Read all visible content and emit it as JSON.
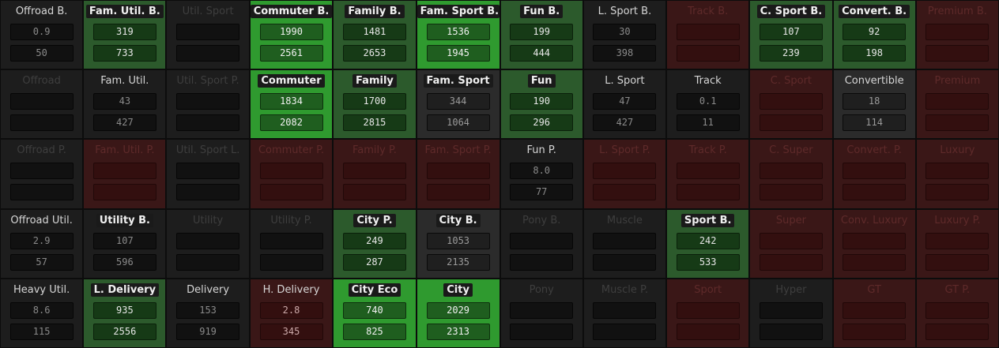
{
  "colors": {
    "dark": "#1d1d1d",
    "gray": "#2b2b2b",
    "green": "#2c5a2c",
    "bright_green": "#2f9a2f",
    "red": "#3a1717"
  },
  "rows": [
    [
      {
        "name": "Offroad B.",
        "label_style": "light",
        "tone": "dark",
        "v1": "0.9",
        "v2": "50"
      },
      {
        "name": "Fam. Util. B.",
        "label_style": "bold",
        "tone": "green",
        "v1": "319",
        "v2": "733"
      },
      {
        "name": "Util. Sport",
        "label_style": "faint",
        "tone": "dark",
        "v1": "",
        "v2": ""
      },
      {
        "name": "Commuter B.",
        "label_style": "bold",
        "tone": "bright",
        "v1": "1990",
        "v2": "2561"
      },
      {
        "name": "Family B.",
        "label_style": "bold",
        "tone": "green",
        "v1": "1481",
        "v2": "2653"
      },
      {
        "name": "Fam. Sport B.",
        "label_style": "bold",
        "tone": "bright",
        "v1": "1536",
        "v2": "1945"
      },
      {
        "name": "Fun B.",
        "label_style": "bold",
        "tone": "green",
        "v1": "199",
        "v2": "444"
      },
      {
        "name": "L. Sport B.",
        "label_style": "light",
        "tone": "dark",
        "v1": "30",
        "v2": "398"
      },
      {
        "name": "Track B.",
        "label_style": "fred",
        "tone": "red",
        "v1": "",
        "v2": ""
      },
      {
        "name": "C. Sport B.",
        "label_style": "bold",
        "tone": "green",
        "v1": "107",
        "v2": "239"
      },
      {
        "name": "Convert. B.",
        "label_style": "bold",
        "tone": "green",
        "v1": "92",
        "v2": "198"
      },
      {
        "name": "Premium B.",
        "label_style": "fred",
        "tone": "red",
        "v1": "",
        "v2": ""
      }
    ],
    [
      {
        "name": "Offroad",
        "label_style": "faint",
        "tone": "dark",
        "v1": "",
        "v2": ""
      },
      {
        "name": "Fam. Util.",
        "label_style": "light",
        "tone": "dark",
        "v1": "43",
        "v2": "427"
      },
      {
        "name": "Util. Sport P.",
        "label_style": "faint",
        "tone": "dark",
        "v1": "",
        "v2": ""
      },
      {
        "name": "Commuter",
        "label_style": "bold",
        "tone": "bright",
        "v1": "1834",
        "v2": "2082"
      },
      {
        "name": "Family",
        "label_style": "bold",
        "tone": "green",
        "v1": "1700",
        "v2": "2815"
      },
      {
        "name": "Fam. Sport",
        "label_style": "bold",
        "tone": "gray",
        "v1": "344",
        "v2": "1064"
      },
      {
        "name": "Fun",
        "label_style": "bold",
        "tone": "green",
        "v1": "190",
        "v2": "296"
      },
      {
        "name": "L. Sport",
        "label_style": "light",
        "tone": "dark",
        "v1": "47",
        "v2": "427"
      },
      {
        "name": "Track",
        "label_style": "light",
        "tone": "dark",
        "v1": "0.1",
        "v2": "11"
      },
      {
        "name": "C. Sport",
        "label_style": "fred",
        "tone": "red",
        "v1": "",
        "v2": ""
      },
      {
        "name": "Convertible",
        "label_style": "light",
        "tone": "gray",
        "v1": "18",
        "v2": "114"
      },
      {
        "name": "Premium",
        "label_style": "fred",
        "tone": "red",
        "v1": "",
        "v2": ""
      }
    ],
    [
      {
        "name": "Offroad P.",
        "label_style": "faint",
        "tone": "dark",
        "v1": "",
        "v2": ""
      },
      {
        "name": "Fam. Util. P.",
        "label_style": "fred",
        "tone": "red",
        "v1": "",
        "v2": ""
      },
      {
        "name": "Util. Sport L.",
        "label_style": "faint",
        "tone": "dark",
        "v1": "",
        "v2": ""
      },
      {
        "name": "Commuter P.",
        "label_style": "fred",
        "tone": "red",
        "v1": "",
        "v2": ""
      },
      {
        "name": "Family P.",
        "label_style": "fred",
        "tone": "red",
        "v1": "",
        "v2": ""
      },
      {
        "name": "Fam. Sport P.",
        "label_style": "fred",
        "tone": "red",
        "v1": "",
        "v2": ""
      },
      {
        "name": "Fun P.",
        "label_style": "light",
        "tone": "dark",
        "v1": "8.0",
        "v2": "77"
      },
      {
        "name": "L. Sport P.",
        "label_style": "fred",
        "tone": "red",
        "v1": "",
        "v2": ""
      },
      {
        "name": "Track P.",
        "label_style": "fred",
        "tone": "red",
        "v1": "",
        "v2": ""
      },
      {
        "name": "C. Super",
        "label_style": "fred",
        "tone": "red",
        "v1": "",
        "v2": ""
      },
      {
        "name": "Convert. P.",
        "label_style": "fred",
        "tone": "red",
        "v1": "",
        "v2": ""
      },
      {
        "name": "Luxury",
        "label_style": "fred",
        "tone": "red",
        "v1": "",
        "v2": ""
      }
    ],
    [
      {
        "name": "Offroad Util.",
        "label_style": "light",
        "tone": "dark",
        "v1": "2.9",
        "v2": "57"
      },
      {
        "name": "Utility B.",
        "label_style": "bold",
        "tone": "dark",
        "v1": "107",
        "v2": "596"
      },
      {
        "name": "Utility",
        "label_style": "faint",
        "tone": "dark",
        "v1": "",
        "v2": ""
      },
      {
        "name": "Utility P.",
        "label_style": "faint",
        "tone": "dark",
        "v1": "",
        "v2": ""
      },
      {
        "name": "City P.",
        "label_style": "bold",
        "tone": "green",
        "v1": "249",
        "v2": "287"
      },
      {
        "name": "City B.",
        "label_style": "bold",
        "tone": "gray",
        "v1": "1053",
        "v2": "2135"
      },
      {
        "name": "Pony B.",
        "label_style": "faint",
        "tone": "dark",
        "v1": "",
        "v2": ""
      },
      {
        "name": "Muscle",
        "label_style": "faint",
        "tone": "dark",
        "v1": "",
        "v2": ""
      },
      {
        "name": "Sport B.",
        "label_style": "bold",
        "tone": "green",
        "v1": "242",
        "v2": "533"
      },
      {
        "name": "Super",
        "label_style": "fred",
        "tone": "red",
        "v1": "",
        "v2": ""
      },
      {
        "name": "Conv. Luxury",
        "label_style": "fred",
        "tone": "red",
        "v1": "",
        "v2": ""
      },
      {
        "name": "Luxury P.",
        "label_style": "fred",
        "tone": "red",
        "v1": "",
        "v2": ""
      }
    ],
    [
      {
        "name": "Heavy Util.",
        "label_style": "light",
        "tone": "dark",
        "v1": "8.6",
        "v2": "115"
      },
      {
        "name": "L. Delivery",
        "label_style": "bold",
        "tone": "green",
        "v1": "935",
        "v2": "2556"
      },
      {
        "name": "Delivery",
        "label_style": "light",
        "tone": "dark",
        "v1": "153",
        "v2": "919"
      },
      {
        "name": "H. Delivery",
        "label_style": "light",
        "tone": "red",
        "v1": "2.8",
        "v2": "345"
      },
      {
        "name": "City Eco",
        "label_style": "bold",
        "tone": "bright",
        "v1": "740",
        "v2": "825"
      },
      {
        "name": "City",
        "label_style": "bold",
        "tone": "bright",
        "v1": "2029",
        "v2": "2313"
      },
      {
        "name": "Pony",
        "label_style": "faint",
        "tone": "dark",
        "v1": "",
        "v2": ""
      },
      {
        "name": "Muscle P.",
        "label_style": "faint",
        "tone": "dark",
        "v1": "",
        "v2": ""
      },
      {
        "name": "Sport",
        "label_style": "fred",
        "tone": "red",
        "v1": "",
        "v2": ""
      },
      {
        "name": "Hyper",
        "label_style": "faint",
        "tone": "dark",
        "v1": "",
        "v2": ""
      },
      {
        "name": "GT",
        "label_style": "fred",
        "tone": "red",
        "v1": "",
        "v2": ""
      },
      {
        "name": "GT P.",
        "label_style": "fred",
        "tone": "red",
        "v1": "",
        "v2": ""
      }
    ]
  ]
}
